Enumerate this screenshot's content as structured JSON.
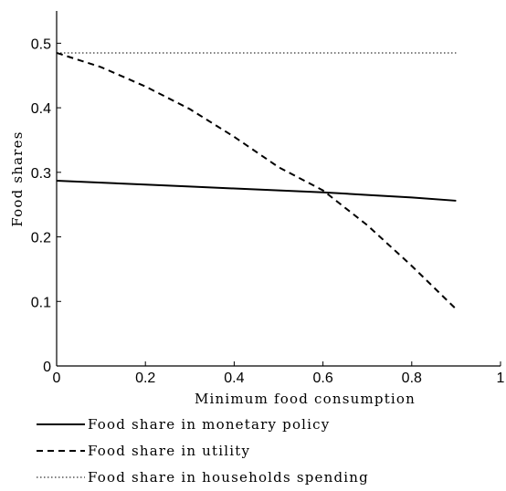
{
  "chart_data": {
    "type": "line",
    "xlabel": "Minimum food consumption",
    "ylabel": "Food shares",
    "xlim": [
      0,
      1
    ],
    "ylim": [
      0,
      0.55
    ],
    "xticks": [
      0,
      0.2,
      0.4,
      0.6,
      0.8,
      1
    ],
    "yticks": [
      0,
      0.1,
      0.2,
      0.3,
      0.4,
      0.5
    ],
    "xtick_labels": [
      "0",
      "0.2",
      "0.4",
      "0.6",
      "0.8",
      "1"
    ],
    "ytick_labels": [
      "0",
      "0.1",
      "0.2",
      "0.3",
      "0.4",
      "0.5"
    ],
    "grid": false,
    "legend_position": "below",
    "series": [
      {
        "name": "Food share in monetary policy",
        "style": "solid",
        "color": "#000000",
        "x": [
          0,
          0.1,
          0.2,
          0.3,
          0.4,
          0.5,
          0.6,
          0.7,
          0.8,
          0.9
        ],
        "y": [
          0.287,
          0.284,
          0.281,
          0.278,
          0.275,
          0.272,
          0.269,
          0.265,
          0.261,
          0.256
        ]
      },
      {
        "name": "Food share in utility",
        "style": "dashed",
        "color": "#000000",
        "x": [
          0,
          0.1,
          0.2,
          0.3,
          0.4,
          0.5,
          0.6,
          0.7,
          0.8,
          0.9
        ],
        "y": [
          0.485,
          0.463,
          0.433,
          0.398,
          0.355,
          0.308,
          0.272,
          0.218,
          0.155,
          0.088
        ]
      },
      {
        "name": "Food share in households spending",
        "style": "dotted",
        "color": "#000000",
        "x": [
          0,
          0.9
        ],
        "y": [
          0.485,
          0.485
        ]
      }
    ]
  }
}
